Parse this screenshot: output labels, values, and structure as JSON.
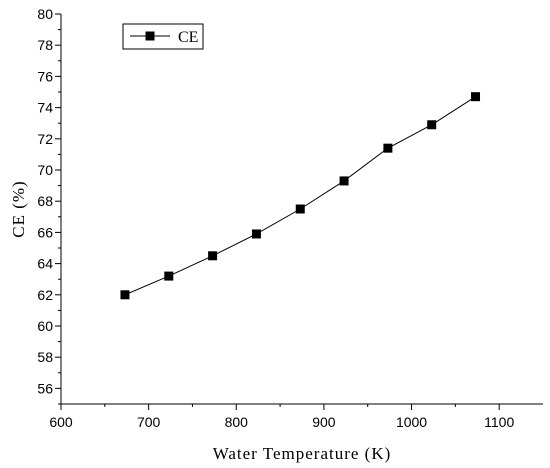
{
  "chart_data": {
    "type": "line",
    "xlabel": "Water Temperature (K)",
    "ylabel": "CE (%)",
    "xlim": [
      600,
      1150
    ],
    "ylim": [
      55,
      80
    ],
    "x_ticks": [
      600,
      700,
      800,
      900,
      1000,
      1100
    ],
    "y_ticks": [
      56,
      58,
      60,
      62,
      64,
      66,
      68,
      70,
      72,
      74,
      76,
      78,
      80
    ],
    "legend_position": "top-left",
    "series": [
      {
        "name": "CE",
        "marker": "square",
        "color": "#000000",
        "x": [
          673,
          723,
          773,
          823,
          873,
          923,
          973,
          1023,
          1073
        ],
        "values": [
          62.0,
          63.2,
          64.5,
          65.9,
          67.5,
          69.3,
          71.4,
          72.9,
          74.7
        ]
      }
    ]
  }
}
